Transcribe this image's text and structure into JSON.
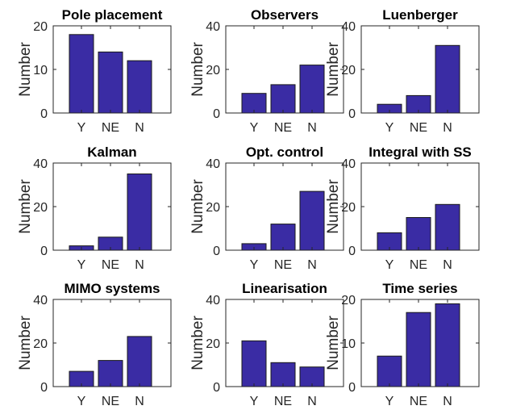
{
  "chart_data": [
    {
      "type": "bar",
      "title": "Pole placement",
      "ylabel": "Number",
      "categories": [
        "Y",
        "NE",
        "N"
      ],
      "values": [
        18,
        14,
        12
      ],
      "ylim": [
        0,
        20
      ],
      "yticks": [
        0,
        10,
        20
      ],
      "color": "#3a2ca4"
    },
    {
      "type": "bar",
      "title": "Observers",
      "ylabel": "Number",
      "categories": [
        "Y",
        "NE",
        "N"
      ],
      "values": [
        9,
        13,
        22
      ],
      "ylim": [
        0,
        40
      ],
      "yticks": [
        0,
        20,
        40
      ],
      "color": "#3a2ca4"
    },
    {
      "type": "bar",
      "title": "Luenberger",
      "ylabel": "Number",
      "categories": [
        "Y",
        "NE",
        "N"
      ],
      "values": [
        4,
        8,
        31
      ],
      "ylim": [
        0,
        40
      ],
      "yticks": [
        0,
        20,
        40
      ],
      "color": "#3a2ca4"
    },
    {
      "type": "bar",
      "title": "Kalman",
      "ylabel": "Number",
      "categories": [
        "Y",
        "NE",
        "N"
      ],
      "values": [
        2,
        6,
        35
      ],
      "ylim": [
        0,
        40
      ],
      "yticks": [
        0,
        20,
        40
      ],
      "color": "#3a2ca4"
    },
    {
      "type": "bar",
      "title": "Opt. control",
      "ylabel": "Number",
      "categories": [
        "Y",
        "NE",
        "N"
      ],
      "values": [
        3,
        12,
        27
      ],
      "ylim": [
        0,
        40
      ],
      "yticks": [
        0,
        20,
        40
      ],
      "color": "#3a2ca4"
    },
    {
      "type": "bar",
      "title": "Integral with SS",
      "ylabel": "Number",
      "categories": [
        "Y",
        "NE",
        "N"
      ],
      "values": [
        8,
        15,
        21
      ],
      "ylim": [
        0,
        40
      ],
      "yticks": [
        0,
        20,
        40
      ],
      "color": "#3a2ca4"
    },
    {
      "type": "bar",
      "title": "MIMO systems",
      "ylabel": "Number",
      "categories": [
        "Y",
        "NE",
        "N"
      ],
      "values": [
        7,
        12,
        23
      ],
      "ylim": [
        0,
        40
      ],
      "yticks": [
        0,
        20,
        40
      ],
      "color": "#3a2ca4"
    },
    {
      "type": "bar",
      "title": "Linearisation",
      "ylabel": "Number",
      "categories": [
        "Y",
        "NE",
        "N"
      ],
      "values": [
        21,
        11,
        9
      ],
      "ylim": [
        0,
        40
      ],
      "yticks": [
        0,
        20,
        40
      ],
      "color": "#3a2ca4"
    },
    {
      "type": "bar",
      "title": "Time series",
      "ylabel": "Number",
      "categories": [
        "Y",
        "NE",
        "N"
      ],
      "values": [
        7,
        17,
        19
      ],
      "ylim": [
        0,
        20
      ],
      "yticks": [
        0,
        10,
        20
      ],
      "color": "#3a2ca4"
    }
  ]
}
